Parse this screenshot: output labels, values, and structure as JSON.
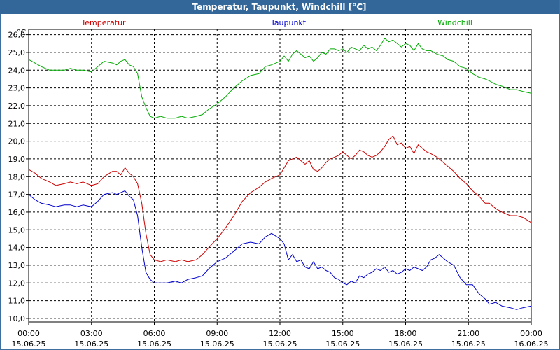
{
  "window": {
    "title": "Temperatur, Taupunkt, Windchill [°C]"
  },
  "chart_data": {
    "type": "line",
    "title": "Temperatur, Taupunkt, Windchill [°C]",
    "ylabel": "°C",
    "xlabel": "",
    "grid": true,
    "ylim": [
      9.8,
      26.3
    ],
    "xlim": [
      0,
      24
    ],
    "y_ticks": [
      "10,0",
      "11,0",
      "12,0",
      "13,0",
      "14,0",
      "15,0",
      "16,0",
      "17,0",
      "18,0",
      "19,0",
      "20,0",
      "21,0",
      "22,0",
      "23,0",
      "24,0",
      "25,0",
      "26,0"
    ],
    "x_ticks": [
      {
        "time": "00:00",
        "date": "15.06.25"
      },
      {
        "time": "03:00",
        "date": "15.06.25"
      },
      {
        "time": "06:00",
        "date": "15.06.25"
      },
      {
        "time": "09:00",
        "date": "15.06.25"
      },
      {
        "time": "12:00",
        "date": "15.06.25"
      },
      {
        "time": "15:00",
        "date": "15.06.25"
      },
      {
        "time": "18:00",
        "date": "15.06.25"
      },
      {
        "time": "21:00",
        "date": "15.06.25"
      },
      {
        "time": "00:00",
        "date": "16.06.25"
      }
    ],
    "series": [
      {
        "name": "Temperatur",
        "color": "#cc0000",
        "points": [
          [
            0,
            18.4
          ],
          [
            0.3,
            18.2
          ],
          [
            0.6,
            17.9
          ],
          [
            1,
            17.7
          ],
          [
            1.3,
            17.5
          ],
          [
            1.7,
            17.6
          ],
          [
            2,
            17.7
          ],
          [
            2.3,
            17.6
          ],
          [
            2.6,
            17.7
          ],
          [
            3,
            17.5
          ],
          [
            3.3,
            17.6
          ],
          [
            3.6,
            18.0
          ],
          [
            4,
            18.3
          ],
          [
            4.2,
            18.3
          ],
          [
            4.4,
            18.1
          ],
          [
            4.6,
            18.5
          ],
          [
            4.8,
            18.2
          ],
          [
            5,
            18.0
          ],
          [
            5.2,
            17.6
          ],
          [
            5.4,
            16.5
          ],
          [
            5.6,
            14.8
          ],
          [
            5.8,
            13.6
          ],
          [
            6,
            13.3
          ],
          [
            6.3,
            13.2
          ],
          [
            6.6,
            13.3
          ],
          [
            7,
            13.2
          ],
          [
            7.3,
            13.3
          ],
          [
            7.6,
            13.2
          ],
          [
            8,
            13.3
          ],
          [
            8.3,
            13.6
          ],
          [
            8.6,
            14.0
          ],
          [
            9,
            14.5
          ],
          [
            9.4,
            15.1
          ],
          [
            9.8,
            15.8
          ],
          [
            10.2,
            16.6
          ],
          [
            10.6,
            17.1
          ],
          [
            11,
            17.4
          ],
          [
            11.3,
            17.7
          ],
          [
            11.6,
            17.9
          ],
          [
            12,
            18.1
          ],
          [
            12.2,
            18.5
          ],
          [
            12.4,
            18.9
          ],
          [
            12.6,
            19.0
          ],
          [
            12.8,
            19.1
          ],
          [
            13,
            18.9
          ],
          [
            13.2,
            18.7
          ],
          [
            13.4,
            18.9
          ],
          [
            13.6,
            18.4
          ],
          [
            13.8,
            18.3
          ],
          [
            14,
            18.5
          ],
          [
            14.2,
            18.8
          ],
          [
            14.4,
            19.0
          ],
          [
            14.6,
            19.1
          ],
          [
            14.8,
            19.2
          ],
          [
            15,
            19.4
          ],
          [
            15.2,
            19.2
          ],
          [
            15.4,
            19.0
          ],
          [
            15.6,
            19.2
          ],
          [
            15.8,
            19.5
          ],
          [
            16,
            19.4
          ],
          [
            16.2,
            19.2
          ],
          [
            16.4,
            19.1
          ],
          [
            16.6,
            19.2
          ],
          [
            16.8,
            19.4
          ],
          [
            17,
            19.7
          ],
          [
            17.2,
            20.1
          ],
          [
            17.4,
            20.3
          ],
          [
            17.6,
            19.8
          ],
          [
            17.8,
            19.9
          ],
          [
            18,
            19.6
          ],
          [
            18.2,
            19.7
          ],
          [
            18.4,
            19.3
          ],
          [
            18.6,
            19.8
          ],
          [
            18.8,
            19.6
          ],
          [
            19,
            19.4
          ],
          [
            19.2,
            19.3
          ],
          [
            19.5,
            19.1
          ],
          [
            19.8,
            18.8
          ],
          [
            20,
            18.6
          ],
          [
            20.3,
            18.3
          ],
          [
            20.6,
            17.9
          ],
          [
            20.9,
            17.6
          ],
          [
            21.2,
            17.2
          ],
          [
            21.5,
            16.9
          ],
          [
            21.8,
            16.5
          ],
          [
            22,
            16.5
          ],
          [
            22.3,
            16.2
          ],
          [
            22.6,
            16.0
          ],
          [
            23,
            15.8
          ],
          [
            23.3,
            15.8
          ],
          [
            23.6,
            15.7
          ],
          [
            24,
            15.4
          ]
        ]
      },
      {
        "name": "Taupunkt",
        "color": "#0000cc",
        "points": [
          [
            0,
            17.0
          ],
          [
            0.3,
            16.7
          ],
          [
            0.6,
            16.5
          ],
          [
            1,
            16.4
          ],
          [
            1.3,
            16.3
          ],
          [
            1.7,
            16.4
          ],
          [
            2,
            16.4
          ],
          [
            2.3,
            16.3
          ],
          [
            2.6,
            16.4
          ],
          [
            3,
            16.3
          ],
          [
            3.3,
            16.6
          ],
          [
            3.6,
            17.0
          ],
          [
            4,
            17.1
          ],
          [
            4.2,
            17.0
          ],
          [
            4.4,
            17.1
          ],
          [
            4.6,
            17.2
          ],
          [
            4.8,
            16.9
          ],
          [
            5,
            16.7
          ],
          [
            5.2,
            15.8
          ],
          [
            5.4,
            14.0
          ],
          [
            5.6,
            12.6
          ],
          [
            5.8,
            12.2
          ],
          [
            6,
            12.0
          ],
          [
            6.3,
            12.0
          ],
          [
            6.6,
            12.0
          ],
          [
            7,
            12.1
          ],
          [
            7.3,
            12.0
          ],
          [
            7.6,
            12.2
          ],
          [
            8,
            12.3
          ],
          [
            8.3,
            12.4
          ],
          [
            8.6,
            12.8
          ],
          [
            9,
            13.2
          ],
          [
            9.4,
            13.4
          ],
          [
            9.8,
            13.8
          ],
          [
            10.2,
            14.2
          ],
          [
            10.6,
            14.3
          ],
          [
            11,
            14.2
          ],
          [
            11.3,
            14.6
          ],
          [
            11.6,
            14.8
          ],
          [
            12,
            14.5
          ],
          [
            12.2,
            14.2
          ],
          [
            12.4,
            13.3
          ],
          [
            12.6,
            13.6
          ],
          [
            12.8,
            13.2
          ],
          [
            13,
            13.3
          ],
          [
            13.2,
            12.9
          ],
          [
            13.4,
            12.8
          ],
          [
            13.6,
            13.2
          ],
          [
            13.8,
            12.8
          ],
          [
            14,
            12.9
          ],
          [
            14.2,
            12.7
          ],
          [
            14.4,
            12.6
          ],
          [
            14.6,
            12.3
          ],
          [
            14.8,
            12.2
          ],
          [
            15,
            12.0
          ],
          [
            15.2,
            11.9
          ],
          [
            15.4,
            12.1
          ],
          [
            15.6,
            12.0
          ],
          [
            15.8,
            12.4
          ],
          [
            16,
            12.3
          ],
          [
            16.2,
            12.5
          ],
          [
            16.4,
            12.6
          ],
          [
            16.6,
            12.8
          ],
          [
            16.8,
            12.7
          ],
          [
            17,
            12.9
          ],
          [
            17.2,
            12.6
          ],
          [
            17.4,
            12.7
          ],
          [
            17.6,
            12.5
          ],
          [
            17.8,
            12.6
          ],
          [
            18,
            12.8
          ],
          [
            18.2,
            12.7
          ],
          [
            18.4,
            12.9
          ],
          [
            18.6,
            12.8
          ],
          [
            18.8,
            12.7
          ],
          [
            19,
            12.9
          ],
          [
            19.2,
            13.3
          ],
          [
            19.4,
            13.4
          ],
          [
            19.6,
            13.6
          ],
          [
            19.8,
            13.4
          ],
          [
            20,
            13.2
          ],
          [
            20.3,
            13.0
          ],
          [
            20.6,
            12.3
          ],
          [
            20.9,
            11.9
          ],
          [
            21.2,
            11.9
          ],
          [
            21.5,
            11.4
          ],
          [
            21.8,
            11.1
          ],
          [
            22,
            10.8
          ],
          [
            22.3,
            10.9
          ],
          [
            22.6,
            10.7
          ],
          [
            23,
            10.6
          ],
          [
            23.3,
            10.5
          ],
          [
            23.6,
            10.6
          ],
          [
            24,
            10.7
          ]
        ]
      },
      {
        "name": "Windchill",
        "color": "#00aa00",
        "points": [
          [
            0,
            24.6
          ],
          [
            0.3,
            24.4
          ],
          [
            0.6,
            24.2
          ],
          [
            1,
            24.0
          ],
          [
            1.3,
            24.0
          ],
          [
            1.7,
            24.0
          ],
          [
            2,
            24.1
          ],
          [
            2.3,
            24.0
          ],
          [
            2.6,
            24.0
          ],
          [
            3,
            23.9
          ],
          [
            3.3,
            24.2
          ],
          [
            3.6,
            24.5
          ],
          [
            4,
            24.4
          ],
          [
            4.2,
            24.3
          ],
          [
            4.4,
            24.5
          ],
          [
            4.6,
            24.6
          ],
          [
            4.8,
            24.3
          ],
          [
            5,
            24.2
          ],
          [
            5.2,
            23.8
          ],
          [
            5.4,
            22.5
          ],
          [
            5.6,
            21.9
          ],
          [
            5.8,
            21.4
          ],
          [
            6,
            21.3
          ],
          [
            6.3,
            21.4
          ],
          [
            6.6,
            21.3
          ],
          [
            7,
            21.3
          ],
          [
            7.3,
            21.4
          ],
          [
            7.6,
            21.3
          ],
          [
            8,
            21.4
          ],
          [
            8.3,
            21.5
          ],
          [
            8.6,
            21.8
          ],
          [
            9,
            22.1
          ],
          [
            9.4,
            22.5
          ],
          [
            9.8,
            23.0
          ],
          [
            10.2,
            23.4
          ],
          [
            10.6,
            23.7
          ],
          [
            11,
            23.8
          ],
          [
            11.3,
            24.2
          ],
          [
            11.6,
            24.3
          ],
          [
            12,
            24.5
          ],
          [
            12.2,
            24.8
          ],
          [
            12.4,
            24.5
          ],
          [
            12.6,
            24.9
          ],
          [
            12.8,
            25.1
          ],
          [
            13,
            24.9
          ],
          [
            13.2,
            24.7
          ],
          [
            13.4,
            24.8
          ],
          [
            13.6,
            24.5
          ],
          [
            13.8,
            24.7
          ],
          [
            14,
            25.0
          ],
          [
            14.2,
            24.9
          ],
          [
            14.4,
            25.2
          ],
          [
            14.6,
            25.2
          ],
          [
            14.8,
            25.1
          ],
          [
            15,
            25.2
          ],
          [
            15.2,
            25.0
          ],
          [
            15.4,
            25.3
          ],
          [
            15.6,
            25.2
          ],
          [
            15.8,
            25.1
          ],
          [
            16,
            25.4
          ],
          [
            16.2,
            25.2
          ],
          [
            16.4,
            25.3
          ],
          [
            16.6,
            25.1
          ],
          [
            16.8,
            25.4
          ],
          [
            17,
            25.8
          ],
          [
            17.2,
            25.6
          ],
          [
            17.4,
            25.7
          ],
          [
            17.6,
            25.5
          ],
          [
            17.8,
            25.3
          ],
          [
            18,
            25.5
          ],
          [
            18.2,
            25.4
          ],
          [
            18.4,
            25.1
          ],
          [
            18.6,
            25.5
          ],
          [
            18.8,
            25.2
          ],
          [
            19,
            25.1
          ],
          [
            19.2,
            25.1
          ],
          [
            19.5,
            24.9
          ],
          [
            19.8,
            24.8
          ],
          [
            20,
            24.6
          ],
          [
            20.3,
            24.5
          ],
          [
            20.6,
            24.2
          ],
          [
            20.9,
            24.1
          ],
          [
            21.2,
            23.8
          ],
          [
            21.5,
            23.6
          ],
          [
            21.8,
            23.5
          ],
          [
            22,
            23.4
          ],
          [
            22.3,
            23.2
          ],
          [
            22.6,
            23.1
          ],
          [
            23,
            22.9
          ],
          [
            23.3,
            22.9
          ],
          [
            23.6,
            22.8
          ],
          [
            24,
            22.7
          ]
        ]
      }
    ]
  }
}
